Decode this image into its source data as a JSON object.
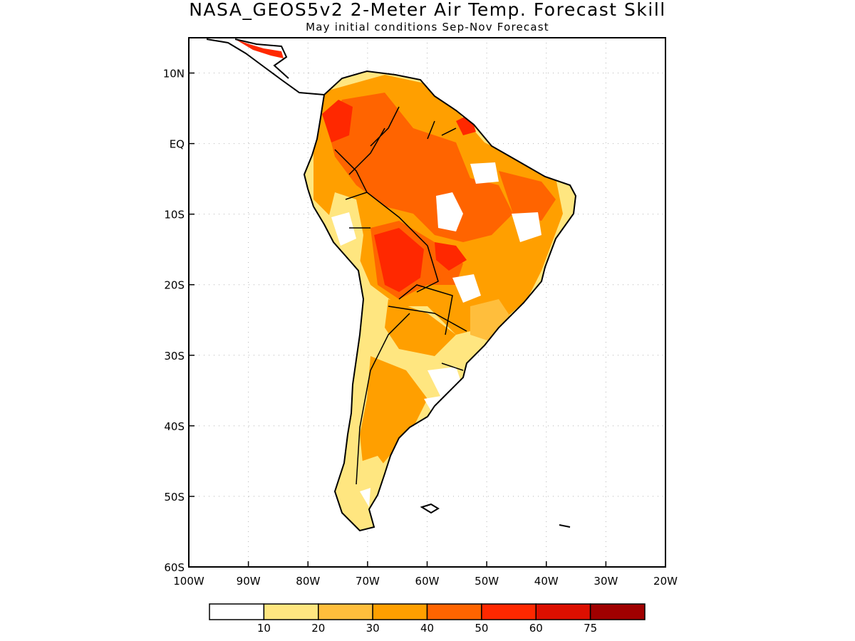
{
  "header": {
    "title": "NASA_GEOS5v2 2-Meter Air Temp. Forecast Skill",
    "subtitle": "May initial conditions  Sep-Nov Forecast"
  },
  "map": {
    "lon_range": [
      -100,
      -20
    ],
    "lat_range": [
      -60,
      15
    ],
    "lon_ticks": [
      {
        "value": -100,
        "label": "100W"
      },
      {
        "value": -90,
        "label": "90W"
      },
      {
        "value": -80,
        "label": "80W"
      },
      {
        "value": -70,
        "label": "70W"
      },
      {
        "value": -60,
        "label": "60W"
      },
      {
        "value": -50,
        "label": "50W"
      },
      {
        "value": -40,
        "label": "40W"
      },
      {
        "value": -30,
        "label": "30W"
      },
      {
        "value": -20,
        "label": "20W"
      }
    ],
    "lat_ticks": [
      {
        "value": 10,
        "label": "10N"
      },
      {
        "value": 0,
        "label": "EQ"
      },
      {
        "value": -10,
        "label": "10S"
      },
      {
        "value": -20,
        "label": "20S"
      },
      {
        "value": -30,
        "label": "30S"
      },
      {
        "value": -40,
        "label": "40S"
      },
      {
        "value": -50,
        "label": "50S"
      },
      {
        "value": -60,
        "label": "60S"
      }
    ],
    "grid": true
  },
  "colorbar": {
    "bins": [
      {
        "color": "#ffffff"
      },
      {
        "color": "#ffe680"
      },
      {
        "color": "#ffbe3c"
      },
      {
        "color": "#ff9f00"
      },
      {
        "color": "#ff6400"
      },
      {
        "color": "#ff2800"
      },
      {
        "color": "#dc0f00"
      },
      {
        "color": "#a00000"
      }
    ],
    "labels": [
      "10",
      "20",
      "30",
      "40",
      "50",
      "60",
      "75"
    ]
  }
}
